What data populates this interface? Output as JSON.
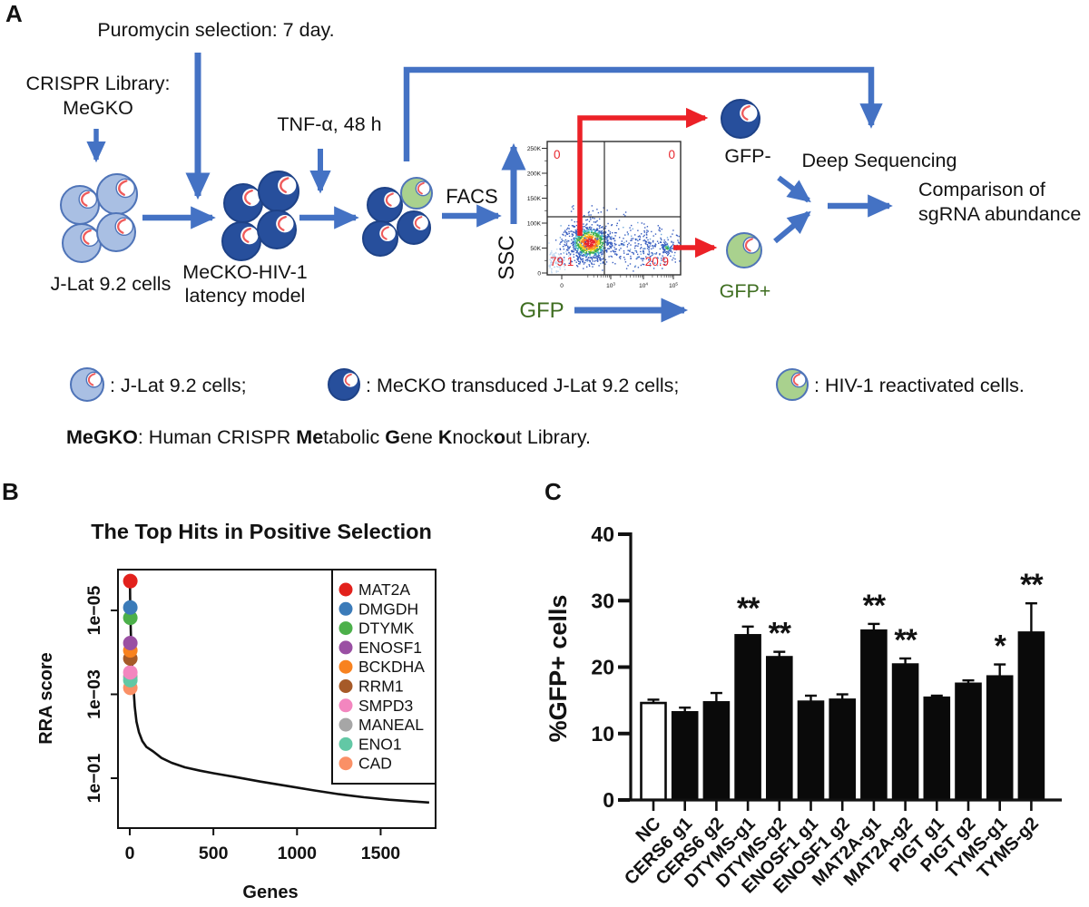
{
  "figure": {
    "panel_labels": {
      "a": "A",
      "b": "B",
      "c": "C"
    }
  },
  "panel_a": {
    "puromycin_label": "Puromycin selection: 7 day.",
    "crispr_library_line1": "CRISPR Library:",
    "crispr_library_line2": "MeGKO",
    "tnf_label": "TNF-α, 48 h",
    "jlat_cells_label": "J-Lat 9.2 cells",
    "mecko_model_line1": "MeCKO-HIV-1",
    "mecko_model_line2": "latency model",
    "facs_label": "FACS",
    "deep_sequencing_label": "Deep Sequencing",
    "comparison_line1": "Comparison of",
    "comparison_line2": "sgRNA abundance",
    "gfp_negative_label": "GFP-",
    "gfp_positive_label": "GFP+",
    "flow_plot": {
      "y_axis_label": "SSC",
      "x_axis_label": "GFP",
      "y_ticks": [
        "0",
        "50K",
        "100K",
        "150K",
        "200K",
        "250K"
      ],
      "x_ticks": [
        {
          "base": "0",
          "exp": ""
        },
        {
          "base": "10",
          "exp": "3"
        },
        {
          "base": "10",
          "exp": "4"
        },
        {
          "base": "10",
          "exp": "5"
        }
      ],
      "quadrants": {
        "top_left": "0",
        "top_right": "0",
        "bottom_left": "79.1",
        "bottom_right": "20.9"
      }
    },
    "cell_legend": [
      {
        "cell_type": "light-blue",
        "label": ": J-Lat 9.2 cells;"
      },
      {
        "cell_type": "dark-blue",
        "label": ": MeCKO transduced J-Lat 9.2 cells;"
      },
      {
        "cell_type": "green",
        "label": ": HIV-1 reactivated cells."
      }
    ],
    "megko_definition_segments": [
      {
        "text": "MeGKO",
        "bold": true
      },
      {
        "text": ": Human CRISPR ",
        "bold": false
      },
      {
        "text": "Me",
        "bold": true
      },
      {
        "text": "tabolic ",
        "bold": false
      },
      {
        "text": "G",
        "bold": true
      },
      {
        "text": "ene ",
        "bold": false
      },
      {
        "text": "K",
        "bold": true
      },
      {
        "text": "nock",
        "bold": false
      },
      {
        "text": "o",
        "bold": true
      },
      {
        "text": "ut Library.",
        "bold": false
      }
    ],
    "colors": {
      "arrow_blue": "#4472c4",
      "arrow_red": "#ec2127",
      "cell_light_fill": "#a9bfe3",
      "cell_dark_fill": "#274f9c",
      "cell_green_fill": "#a9d18e",
      "cell_border": "#4f74b8",
      "nucleus_squiggle": "#ef5b5b",
      "gfp_green_text": "#3f6e21",
      "quadrant_red": "#e8262d"
    }
  },
  "chart_data": [
    {
      "id": "panel_b",
      "type": "line",
      "title": "The Top Hits in Positive Selection",
      "xlabel": "Genes",
      "ylabel": "RRA score",
      "x_ticks": [
        0,
        500,
        1000,
        1500
      ],
      "xlim": [
        0,
        1800
      ],
      "y_tick_labels": [
        "1e−05",
        "1e−03",
        "1e−01"
      ],
      "y_scale": "log10, reversed (lower RRA score plotted higher)",
      "grid": false,
      "legend_position": "top-right",
      "top_hits": [
        {
          "rank": 1,
          "gene": "MAT2A",
          "color": "#e2211c",
          "rra_score": 2e-06
        },
        {
          "rank": 2,
          "gene": "DMGDH",
          "color": "#3b7bb9",
          "rra_score": 8.5e-06
        },
        {
          "rank": 3,
          "gene": "DTYMK",
          "color": "#4cb04a",
          "rra_score": 1.5e-05
        },
        {
          "rank": 4,
          "gene": "ENOSF1",
          "color": "#9a4fa3",
          "rra_score": 6e-05
        },
        {
          "rank": 5,
          "gene": "BCKDHA",
          "color": "#f8821f",
          "rra_score": 9e-05
        },
        {
          "rank": 6,
          "gene": "RRM1",
          "color": "#a65a28",
          "rra_score": 0.00014
        },
        {
          "rank": 7,
          "gene": "SMPD3",
          "color": "#f386bf",
          "rra_score": 0.0003
        },
        {
          "rank": 8,
          "gene": "MANEAL",
          "color": "#a6a6a6",
          "rra_score": 0.00038
        },
        {
          "rank": 9,
          "gene": "ENO1",
          "color": "#62c8a5",
          "rra_score": 0.00046
        },
        {
          "rank": 10,
          "gene": "CAD",
          "color": "#fa9066",
          "rra_score": 0.0007
        }
      ],
      "curve_points": [
        [
          1,
          1.8e-06
        ],
        [
          2,
          5e-06
        ],
        [
          4,
          1.2e-05
        ],
        [
          6,
          3e-05
        ],
        [
          8,
          6e-05
        ],
        [
          10,
          9e-05
        ],
        [
          12,
          0.00015
        ],
        [
          15,
          0.00025
        ],
        [
          18,
          0.0004
        ],
        [
          22,
          0.0007
        ],
        [
          25,
          0.001
        ],
        [
          30,
          0.002
        ],
        [
          40,
          0.0045
        ],
        [
          55,
          0.008
        ],
        [
          75,
          0.013
        ],
        [
          100,
          0.018
        ],
        [
          140,
          0.023
        ],
        [
          190,
          0.033
        ],
        [
          250,
          0.043
        ],
        [
          330,
          0.055
        ],
        [
          420,
          0.066
        ],
        [
          500,
          0.076
        ],
        [
          620,
          0.092
        ],
        [
          780,
          0.12
        ],
        [
          950,
          0.155
        ],
        [
          1100,
          0.195
        ],
        [
          1250,
          0.24
        ],
        [
          1400,
          0.285
        ],
        [
          1550,
          0.325
        ],
        [
          1700,
          0.36
        ],
        [
          1790,
          0.38
        ]
      ]
    },
    {
      "id": "panel_c",
      "type": "bar",
      "ylabel": "%GFP+ cells",
      "ylim": [
        0,
        40
      ],
      "y_ticks": [
        0,
        10,
        20,
        30,
        40
      ],
      "categories": [
        "NC",
        "CERS6 g1",
        "CERS6 g2",
        "DTYMS-g1",
        "DTYMS-g2",
        "ENOSF1 g1",
        "ENOSF1 g2",
        "MAT2A-g1",
        "MAT2A-g2",
        "PIGT g1",
        "PIGT g2",
        "TYMS-g1",
        "TYMS-g2"
      ],
      "values": [
        14.6,
        13.2,
        14.7,
        24.8,
        21.5,
        14.8,
        15.1,
        25.5,
        20.4,
        15.4,
        17.5,
        18.6,
        25.2
      ],
      "errors": [
        0.5,
        0.7,
        1.4,
        1.3,
        0.8,
        0.9,
        0.8,
        1.0,
        0.9,
        0.3,
        0.5,
        1.8,
        4.4
      ],
      "significance": [
        "",
        "",
        "",
        "**",
        "**",
        "",
        "",
        "**",
        "**",
        "",
        "",
        "*",
        "**"
      ],
      "bar_fills": [
        "#ffffff",
        "#0a0a0a",
        "#0a0a0a",
        "#0a0a0a",
        "#0a0a0a",
        "#0a0a0a",
        "#0a0a0a",
        "#0a0a0a",
        "#0a0a0a",
        "#0a0a0a",
        "#0a0a0a",
        "#0a0a0a",
        "#0a0a0a"
      ]
    },
    {
      "id": "panel_a_flow_plot",
      "type": "scatter",
      "xlabel": "GFP",
      "ylabel": "SSC",
      "x_tick_labels": [
        "0",
        "10^3",
        "10^4",
        "10^5"
      ],
      "y_tick_labels": [
        "0",
        "50K",
        "100K",
        "150K",
        "200K",
        "250K"
      ],
      "quadrant_percentages": {
        "upper_left": 0,
        "upper_right": 0,
        "lower_left": 79.1,
        "lower_right": 20.9
      }
    }
  ]
}
